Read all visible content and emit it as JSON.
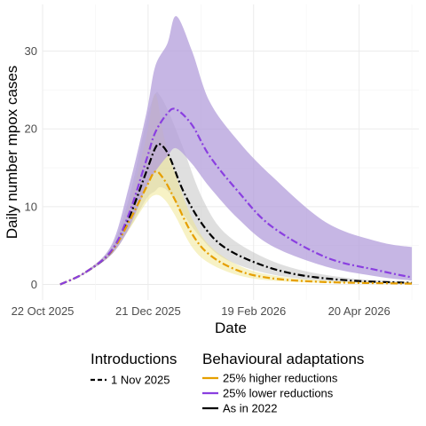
{
  "chart_data": {
    "type": "line",
    "xlabel": "Date",
    "ylabel": "Daily number mpox cases",
    "x_ticks": [
      "22 Oct 2025",
      "21 Dec 2025",
      "19 Feb 2026",
      "20 Apr 2026"
    ],
    "y_ticks": [
      0,
      10,
      20,
      30
    ],
    "xlim": [
      "2025-10-22",
      "2026-05-24"
    ],
    "ylim": [
      -2,
      36
    ],
    "grid": true,
    "legend_placement": "bottom",
    "legend": {
      "introductions": {
        "title": "Introductions",
        "items": [
          {
            "label": "1 Nov 2025",
            "color": "#000000",
            "dash": "dashed"
          }
        ]
      },
      "behavioural": {
        "title": "Behavioural adaptations",
        "items": [
          {
            "label": "25% higher reductions",
            "color": "#E69F00"
          },
          {
            "label": "25% lower reductions",
            "color": "#8A3FE0"
          },
          {
            "label": "As in 2022",
            "color": "#000000"
          }
        ]
      }
    },
    "series": [
      {
        "name": "As in 2022",
        "color": "#000000",
        "band_color": "#bfbfbf",
        "band_opacity": 0.5,
        "points": [
          [
            "2025-11-01",
            0,
            0,
            0
          ],
          [
            "2025-11-15",
            1.5,
            1.4,
            1.6
          ],
          [
            "2025-11-30",
            4.2,
            3.8,
            4.8
          ],
          [
            "2025-12-10",
            8.5,
            7.0,
            11
          ],
          [
            "2025-12-20",
            14.5,
            11,
            21
          ],
          [
            "2025-12-25",
            17.5,
            12,
            24.5
          ],
          [
            "2025-12-28",
            18.0,
            12.5,
            24.2
          ],
          [
            "2026-01-02",
            16.5,
            11.8,
            22
          ],
          [
            "2026-01-10",
            12.0,
            9.0,
            17.5
          ],
          [
            "2026-01-20",
            8.0,
            6.0,
            11.5
          ],
          [
            "2026-02-01",
            5.0,
            3.5,
            7.0
          ],
          [
            "2026-02-20",
            2.8,
            1.8,
            4.0
          ],
          [
            "2026-03-15",
            1.3,
            0.8,
            2.0
          ],
          [
            "2026-04-15",
            0.5,
            0.3,
            0.8
          ],
          [
            "2026-05-20",
            0.2,
            0.1,
            0.3
          ]
        ]
      },
      {
        "name": "25% higher reductions",
        "color": "#E69F00",
        "band_color": "#f0e68c",
        "band_opacity": 0.5,
        "points": [
          [
            "2025-11-01",
            0,
            0,
            0
          ],
          [
            "2025-11-15",
            1.5,
            1.4,
            1.6
          ],
          [
            "2025-11-30",
            4.2,
            3.8,
            4.6
          ],
          [
            "2025-12-10",
            8.0,
            7.0,
            10
          ],
          [
            "2025-12-20",
            12.5,
            10.5,
            19
          ],
          [
            "2025-12-25",
            14.5,
            11.5,
            24.5
          ],
          [
            "2025-12-30",
            13.5,
            11.0,
            19
          ],
          [
            "2026-01-05",
            11.0,
            9.0,
            14.5
          ],
          [
            "2026-01-15",
            6.5,
            4.8,
            8.5
          ],
          [
            "2026-01-25",
            3.8,
            2.7,
            5.0
          ],
          [
            "2026-02-10",
            1.8,
            1.2,
            2.5
          ],
          [
            "2026-03-01",
            0.8,
            0.5,
            1.2
          ],
          [
            "2026-04-01",
            0.3,
            0.2,
            0.5
          ],
          [
            "2026-05-20",
            0.1,
            0.05,
            0.15
          ]
        ]
      },
      {
        "name": "25% lower reductions",
        "color": "#8A3FE0",
        "band_color": "#b39ddb",
        "band_opacity": 0.75,
        "points": [
          [
            "2025-11-01",
            0,
            0,
            0
          ],
          [
            "2025-11-15",
            1.5,
            1.4,
            1.6
          ],
          [
            "2025-11-30",
            4.3,
            3.8,
            5.0
          ],
          [
            "2025-12-10",
            9.0,
            7.2,
            12.5
          ],
          [
            "2025-12-20",
            16.0,
            12.5,
            22
          ],
          [
            "2025-12-25",
            19.5,
            14.5,
            28
          ],
          [
            "2026-01-01",
            22.0,
            16.5,
            31
          ],
          [
            "2026-01-06",
            22.5,
            17.5,
            34.5
          ],
          [
            "2026-01-15",
            20.5,
            15.5,
            30
          ],
          [
            "2026-01-25",
            16.5,
            12.5,
            23.5
          ],
          [
            "2026-02-10",
            12.0,
            8.5,
            18.5
          ],
          [
            "2026-03-01",
            7.5,
            5.0,
            14.0
          ],
          [
            "2026-04-01",
            3.5,
            2.3,
            8.0
          ],
          [
            "2026-05-01",
            1.8,
            1.0,
            5.5
          ],
          [
            "2026-05-20",
            0.9,
            0.5,
            4.8
          ]
        ]
      }
    ]
  }
}
